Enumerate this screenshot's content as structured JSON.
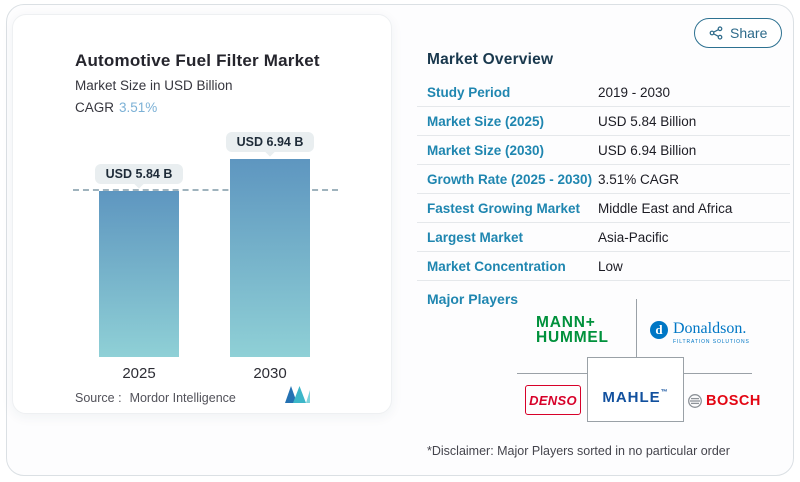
{
  "share": {
    "label": "Share"
  },
  "chart_card": {
    "title": "Automotive Fuel Filter Market",
    "subtitle": "Market Size in USD Billion",
    "cagr_label": "CAGR",
    "cagr_value": "3.51%",
    "source_label": "Source :",
    "source_value": "Mordor Intelligence"
  },
  "chart_data": {
    "type": "bar",
    "categories": [
      "2025",
      "2030"
    ],
    "values": [
      5.84,
      6.94
    ],
    "bar_labels": [
      "USD 5.84 B",
      "USD 6.94 B"
    ],
    "title": "Automotive Fuel Filter Market",
    "xlabel": "",
    "ylabel": "Market Size in USD Billion",
    "ylim": [
      0,
      7.5
    ],
    "grid": false,
    "legend": "none",
    "reference_line": {
      "y": 5.84,
      "style": "dashed"
    },
    "bar_gradient": [
      "#5e96c0",
      "#8fd0d6"
    ]
  },
  "overview": {
    "heading": "Market Overview",
    "rows": [
      {
        "label": "Study Period",
        "value": "2019 - 2030"
      },
      {
        "label": "Market Size (2025)",
        "value": "USD 5.84 Billion"
      },
      {
        "label": "Market Size (2030)",
        "value": "USD 6.94 Billion"
      },
      {
        "label": "Growth Rate (2025 - 2030)",
        "value": "3.51% CAGR"
      },
      {
        "label": "Fastest Growing Market",
        "value": "Middle East and Africa"
      },
      {
        "label": "Largest Market",
        "value": "Asia-Pacific"
      },
      {
        "label": "Market Concentration",
        "value": "Low"
      }
    ],
    "major_players_label": "Major Players",
    "players": {
      "mann_hummel": {
        "line1": "MANN+",
        "line2": "HUMMEL"
      },
      "donaldson": {
        "icon_letter": "d",
        "name": "Donaldson.",
        "tagline": "FILTRATION SOLUTIONS"
      },
      "denso": {
        "name": "DENSO"
      },
      "mahle": {
        "name": "MAHLE",
        "mark": "™"
      },
      "bosch": {
        "name": "BOSCH"
      }
    },
    "disclaimer": "*Disclaimer: Major Players sorted in no particular order"
  },
  "colors": {
    "accent_blue": "#1f86b0",
    "heading_navy": "#19384d",
    "cagr_blue": "#7cb1d6",
    "bar_top": "#5e96c0",
    "bar_bottom": "#8fd0d6",
    "mann_hummel_green": "#00913c",
    "donaldson_blue": "#0077c5",
    "denso_red": "#d70029",
    "mahle_blue": "#11509e",
    "bosch_red": "#e30613",
    "share_teal": "#2d7191"
  }
}
